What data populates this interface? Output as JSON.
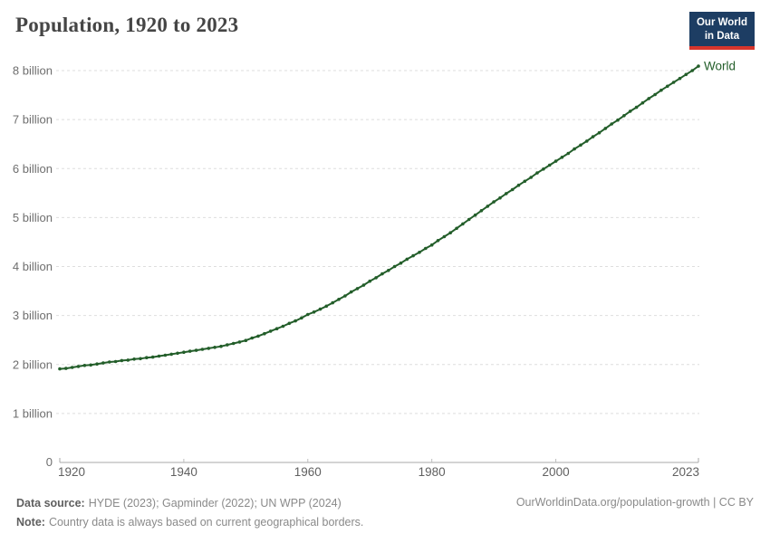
{
  "header": {
    "title": "Population, 1920 to 2023",
    "logo": {
      "line1": "Our World",
      "line2": "in Data",
      "bg_color": "#1d3d63",
      "accent_color": "#d7352c"
    }
  },
  "chart_data": {
    "type": "line",
    "title": "Population, 1920 to 2023",
    "xlabel": "",
    "ylabel": "",
    "xlim": [
      1920,
      2023
    ],
    "ylim": [
      0,
      8
    ],
    "grid": "horizontal-dashed",
    "legend_position": "end-of-line-label",
    "x_ticks": [
      1920,
      1940,
      1960,
      1980,
      2000,
      2023
    ],
    "y_ticks": [
      {
        "value": 0,
        "label": "0"
      },
      {
        "value": 1,
        "label": "1 billion"
      },
      {
        "value": 2,
        "label": "2 billion"
      },
      {
        "value": 3,
        "label": "3 billion"
      },
      {
        "value": 4,
        "label": "4 billion"
      },
      {
        "value": 5,
        "label": "5 billion"
      },
      {
        "value": 6,
        "label": "6 billion"
      },
      {
        "value": 7,
        "label": "7 billion"
      },
      {
        "value": 8,
        "label": "8 billion"
      }
    ],
    "series": [
      {
        "name": "World",
        "color": "#235e2a",
        "unit": "billion",
        "x": [
          1920,
          1921,
          1922,
          1923,
          1924,
          1925,
          1926,
          1927,
          1928,
          1929,
          1930,
          1931,
          1932,
          1933,
          1934,
          1935,
          1936,
          1937,
          1938,
          1939,
          1940,
          1941,
          1942,
          1943,
          1944,
          1945,
          1946,
          1947,
          1948,
          1949,
          1950,
          1951,
          1952,
          1953,
          1954,
          1955,
          1956,
          1957,
          1958,
          1959,
          1960,
          1961,
          1962,
          1963,
          1964,
          1965,
          1966,
          1967,
          1968,
          1969,
          1970,
          1971,
          1972,
          1973,
          1974,
          1975,
          1976,
          1977,
          1978,
          1979,
          1980,
          1981,
          1982,
          1983,
          1984,
          1985,
          1986,
          1987,
          1988,
          1989,
          1990,
          1991,
          1992,
          1993,
          1994,
          1995,
          1996,
          1997,
          1998,
          1999,
          2000,
          2001,
          2002,
          2003,
          2004,
          2005,
          2006,
          2007,
          2008,
          2009,
          2010,
          2011,
          2012,
          2013,
          2014,
          2015,
          2016,
          2017,
          2018,
          2019,
          2020,
          2021,
          2022,
          2023
        ],
        "values": [
          1.91,
          1.92,
          1.94,
          1.96,
          1.98,
          1.99,
          2.01,
          2.03,
          2.05,
          2.06,
          2.08,
          2.09,
          2.11,
          2.12,
          2.14,
          2.15,
          2.17,
          2.19,
          2.21,
          2.23,
          2.25,
          2.27,
          2.29,
          2.31,
          2.33,
          2.35,
          2.37,
          2.4,
          2.43,
          2.46,
          2.49,
          2.54,
          2.58,
          2.63,
          2.68,
          2.73,
          2.78,
          2.84,
          2.89,
          2.95,
          3.02,
          3.07,
          3.13,
          3.19,
          3.26,
          3.33,
          3.4,
          3.48,
          3.55,
          3.62,
          3.7,
          3.77,
          3.85,
          3.92,
          4.0,
          4.07,
          4.15,
          4.22,
          4.29,
          4.37,
          4.44,
          4.53,
          4.61,
          4.69,
          4.78,
          4.87,
          4.96,
          5.05,
          5.14,
          5.23,
          5.32,
          5.4,
          5.49,
          5.57,
          5.66,
          5.74,
          5.82,
          5.91,
          5.99,
          6.07,
          6.15,
          6.23,
          6.31,
          6.4,
          6.48,
          6.56,
          6.65,
          6.73,
          6.82,
          6.91,
          6.99,
          7.08,
          7.17,
          7.25,
          7.34,
          7.43,
          7.51,
          7.6,
          7.68,
          7.76,
          7.84,
          7.92,
          8.0,
          8.09
        ]
      }
    ]
  },
  "footer": {
    "data_source_label": "Data source:",
    "data_source_text": "HYDE (2023); Gapminder (2022); UN WPP (2024)",
    "note_label": "Note:",
    "note_text": "Country data is always based on current geographical borders.",
    "rights": "OurWorldinData.org/population-growth | CC BY"
  },
  "colors": {
    "world_line": "#235e2a",
    "gridline": "#dedede",
    "axis": "#a8a8a8",
    "axis_label": "#606060",
    "title": "#454545",
    "footer_text": "#8a8a8a"
  }
}
